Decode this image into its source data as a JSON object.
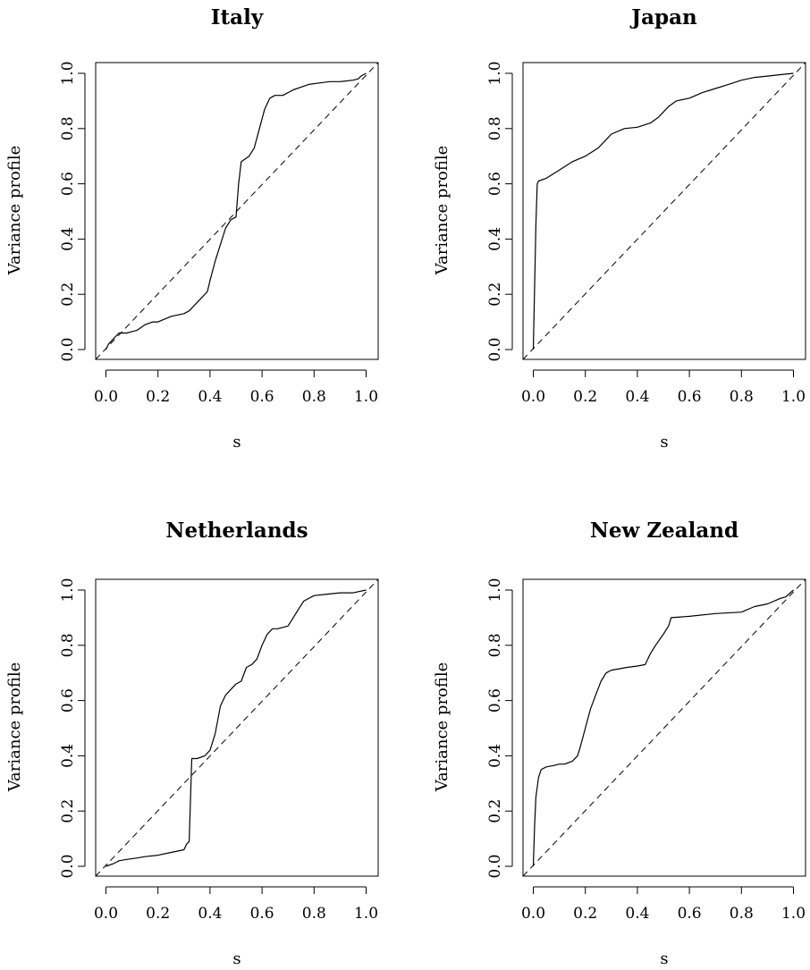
{
  "chart_data": [
    {
      "type": "line",
      "title": "Italy",
      "xlabel": "s",
      "ylabel": "Variance profile",
      "xlim": [
        0,
        1
      ],
      "ylim": [
        0,
        1
      ],
      "xticks": [
        "0.0",
        "0.2",
        "0.4",
        "0.6",
        "0.8",
        "1.0"
      ],
      "yticks": [
        "0.0",
        "0.2",
        "0.4",
        "0.6",
        "0.8",
        "1.0"
      ],
      "grid": false,
      "series": [
        {
          "style": "solid",
          "x": [
            0.0,
            0.01,
            0.03,
            0.05,
            0.08,
            0.1,
            0.12,
            0.15,
            0.18,
            0.2,
            0.25,
            0.3,
            0.32,
            0.34,
            0.36,
            0.39,
            0.4,
            0.42,
            0.44,
            0.46,
            0.48,
            0.5,
            0.51,
            0.52,
            0.55,
            0.57,
            0.59,
            0.61,
            0.63,
            0.65,
            0.68,
            0.7,
            0.72,
            0.75,
            0.78,
            0.82,
            0.86,
            0.9,
            0.95,
            0.97,
            0.98,
            1.0
          ],
          "y": [
            0.0,
            0.02,
            0.04,
            0.06,
            0.06,
            0.065,
            0.07,
            0.09,
            0.1,
            0.1,
            0.12,
            0.13,
            0.14,
            0.16,
            0.18,
            0.21,
            0.25,
            0.32,
            0.38,
            0.44,
            0.47,
            0.48,
            0.6,
            0.68,
            0.7,
            0.73,
            0.8,
            0.87,
            0.91,
            0.92,
            0.92,
            0.93,
            0.94,
            0.95,
            0.96,
            0.965,
            0.97,
            0.97,
            0.975,
            0.98,
            0.99,
            1.0
          ]
        },
        {
          "style": "dashed",
          "x": [
            0,
            1
          ],
          "y": [
            0,
            1
          ]
        }
      ]
    },
    {
      "type": "line",
      "title": "Japan",
      "xlabel": "s",
      "ylabel": "Variance profile",
      "xlim": [
        0,
        1
      ],
      "ylim": [
        0,
        1
      ],
      "xticks": [
        "0.0",
        "0.2",
        "0.4",
        "0.6",
        "0.8",
        "1.0"
      ],
      "yticks": [
        "0.0",
        "0.2",
        "0.4",
        "0.6",
        "0.8",
        "1.0"
      ],
      "grid": false,
      "series": [
        {
          "style": "solid",
          "x": [
            0.0,
            0.01,
            0.015,
            0.02,
            0.05,
            0.1,
            0.15,
            0.2,
            0.25,
            0.28,
            0.3,
            0.35,
            0.4,
            0.45,
            0.48,
            0.5,
            0.52,
            0.55,
            0.6,
            0.65,
            0.7,
            0.75,
            0.8,
            0.85,
            0.9,
            0.95,
            1.0
          ],
          "y": [
            0.0,
            0.45,
            0.6,
            0.61,
            0.62,
            0.65,
            0.68,
            0.7,
            0.73,
            0.76,
            0.78,
            0.8,
            0.805,
            0.82,
            0.84,
            0.86,
            0.88,
            0.9,
            0.91,
            0.93,
            0.945,
            0.96,
            0.975,
            0.985,
            0.99,
            0.995,
            1.0
          ]
        },
        {
          "style": "dashed",
          "x": [
            0,
            1
          ],
          "y": [
            0,
            1
          ]
        }
      ]
    },
    {
      "type": "line",
      "title": "Netherlands",
      "xlabel": "s",
      "ylabel": "Variance profile",
      "xlim": [
        0,
        1
      ],
      "ylim": [
        0,
        1
      ],
      "xticks": [
        "0.0",
        "0.2",
        "0.4",
        "0.6",
        "0.8",
        "1.0"
      ],
      "yticks": [
        "0.0",
        "0.2",
        "0.4",
        "0.6",
        "0.8",
        "1.0"
      ],
      "grid": false,
      "series": [
        {
          "style": "solid",
          "x": [
            0.0,
            0.03,
            0.05,
            0.08,
            0.12,
            0.15,
            0.2,
            0.25,
            0.3,
            0.31,
            0.32,
            0.33,
            0.35,
            0.38,
            0.4,
            0.42,
            0.44,
            0.46,
            0.48,
            0.5,
            0.52,
            0.54,
            0.56,
            0.58,
            0.6,
            0.62,
            0.64,
            0.66,
            0.7,
            0.72,
            0.74,
            0.76,
            0.8,
            0.85,
            0.9,
            0.95,
            1.0
          ],
          "y": [
            0.0,
            0.01,
            0.02,
            0.025,
            0.03,
            0.035,
            0.04,
            0.05,
            0.06,
            0.08,
            0.09,
            0.39,
            0.39,
            0.4,
            0.42,
            0.48,
            0.58,
            0.62,
            0.64,
            0.66,
            0.67,
            0.72,
            0.73,
            0.75,
            0.8,
            0.84,
            0.86,
            0.86,
            0.87,
            0.9,
            0.93,
            0.96,
            0.98,
            0.985,
            0.99,
            0.99,
            1.0
          ]
        },
        {
          "style": "dashed",
          "x": [
            0,
            1
          ],
          "y": [
            0,
            1
          ]
        }
      ]
    },
    {
      "type": "line",
      "title": "New Zealand",
      "xlabel": "s",
      "ylabel": "Variance profile",
      "xlim": [
        0,
        1
      ],
      "ylim": [
        0,
        1
      ],
      "xticks": [
        "0.0",
        "0.2",
        "0.4",
        "0.6",
        "0.8",
        "1.0"
      ],
      "yticks": [
        "0.0",
        "0.2",
        "0.4",
        "0.6",
        "0.8",
        "1.0"
      ],
      "grid": false,
      "series": [
        {
          "style": "solid",
          "x": [
            0.0,
            0.005,
            0.01,
            0.02,
            0.03,
            0.05,
            0.08,
            0.1,
            0.12,
            0.15,
            0.17,
            0.18,
            0.2,
            0.22,
            0.24,
            0.26,
            0.28,
            0.3,
            0.33,
            0.36,
            0.4,
            0.43,
            0.45,
            0.47,
            0.5,
            0.52,
            0.53,
            0.6,
            0.7,
            0.8,
            0.85,
            0.9,
            0.95,
            0.97,
            1.0
          ],
          "y": [
            0.0,
            0.15,
            0.25,
            0.32,
            0.35,
            0.36,
            0.365,
            0.37,
            0.37,
            0.38,
            0.4,
            0.43,
            0.5,
            0.57,
            0.62,
            0.67,
            0.7,
            0.71,
            0.715,
            0.72,
            0.725,
            0.73,
            0.77,
            0.8,
            0.84,
            0.87,
            0.9,
            0.905,
            0.915,
            0.92,
            0.94,
            0.95,
            0.97,
            0.975,
            1.0
          ]
        },
        {
          "style": "dashed",
          "x": [
            0,
            1
          ],
          "y": [
            0,
            1
          ]
        }
      ]
    }
  ]
}
